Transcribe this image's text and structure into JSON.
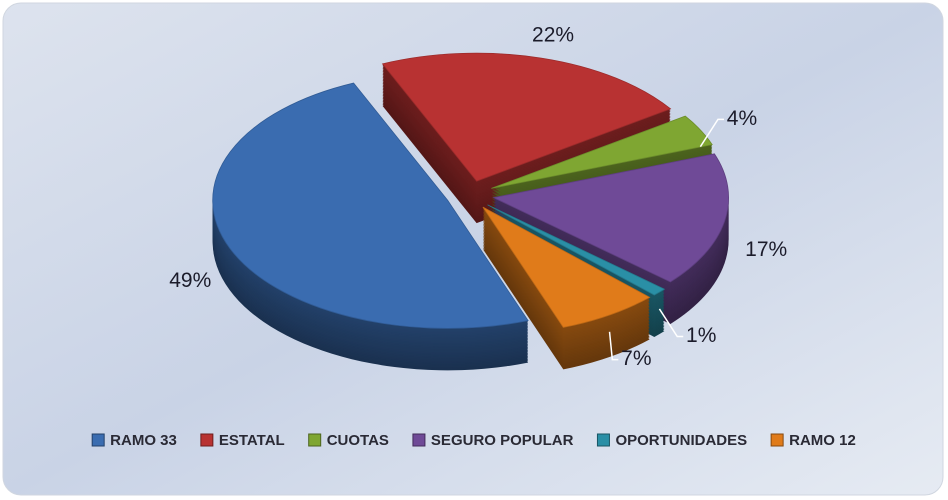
{
  "chart_data": {
    "type": "pie",
    "categories": [
      "RAMO 33",
      "ESTATAL",
      "CUOTAS",
      "SEGURO POPULAR",
      "OPORTUNIDADES",
      "RAMO 12"
    ],
    "values": [
      49,
      22,
      4,
      17,
      1,
      7
    ],
    "value_labels": [
      "49%",
      "22%",
      "4%",
      "17%",
      "1%",
      "7%"
    ],
    "colors": [
      "#3a6cb0",
      "#b83232",
      "#7fa632",
      "#6f4a97",
      "#2a8fa6",
      "#e07b1a"
    ],
    "legend": "bottom"
  }
}
